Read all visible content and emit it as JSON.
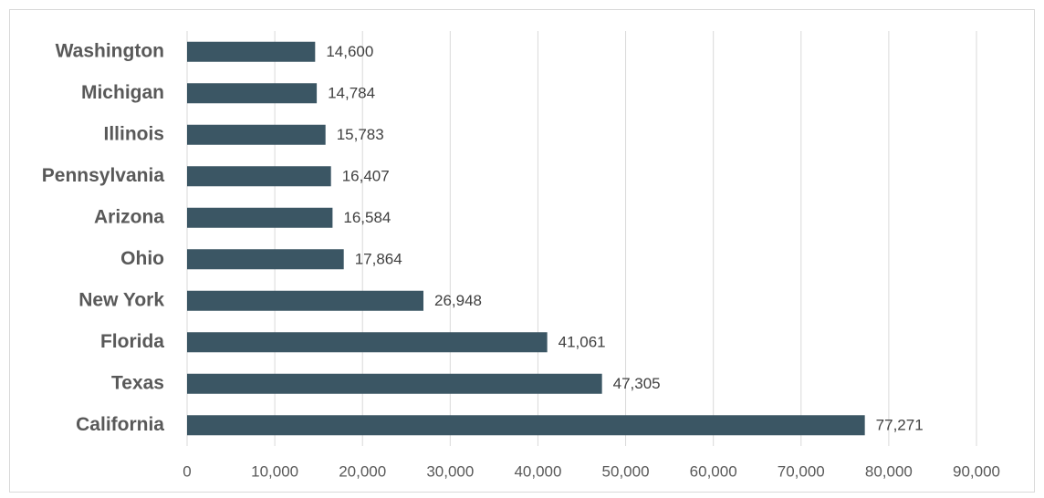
{
  "chart_data": {
    "type": "bar",
    "orientation": "horizontal",
    "categories": [
      "Washington",
      "Michigan",
      "Illinois",
      "Pennsylvania",
      "Arizona",
      "Ohio",
      "New York",
      "Florida",
      "Texas",
      "California"
    ],
    "values": [
      14600,
      14784,
      15783,
      16407,
      16584,
      17864,
      26948,
      41061,
      47305,
      77271
    ],
    "value_labels": [
      "14,600",
      "14,784",
      "15,783",
      "16,407",
      "16,584",
      "17,864",
      "26,948",
      "41,061",
      "47,305",
      "77,271"
    ],
    "color": "#3b5664",
    "xlim": [
      0,
      90000
    ],
    "xticks": [
      0,
      {
        "value": 10000,
        "label": "10,000"
      },
      {
        "value": 20000,
        "label": "20,000"
      },
      {
        "value": 30000,
        "label": "30,000"
      },
      {
        "value": 40000,
        "label": "40,000"
      },
      {
        "value": 50000,
        "label": "50,000"
      },
      {
        "value": 60000,
        "label": "60,000"
      },
      {
        "value": 70000,
        "label": "70,000"
      },
      {
        "value": 80000,
        "label": "80,000"
      },
      {
        "value": 90000,
        "label": "90,000"
      }
    ],
    "grid": true
  }
}
